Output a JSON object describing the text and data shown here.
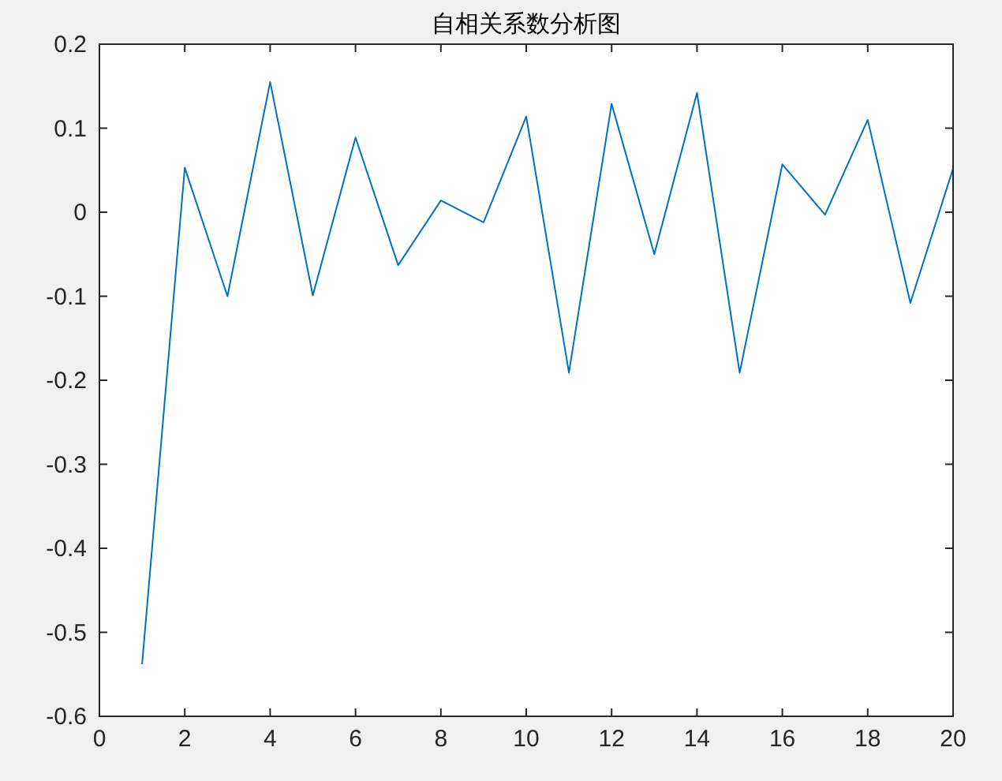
{
  "chart_data": {
    "type": "line",
    "title": "自相关系数分析图",
    "x": [
      1,
      2,
      3,
      4,
      5,
      6,
      7,
      8,
      9,
      10,
      11,
      12,
      13,
      14,
      15,
      16,
      17,
      18,
      19,
      20
    ],
    "series": [
      {
        "color": "#0072bd",
        "values": [
          -0.538,
          0.053,
          -0.1,
          0.155,
          -0.099,
          0.089,
          -0.063,
          0.014,
          -0.012,
          0.114,
          -0.191,
          0.129,
          -0.05,
          0.142,
          -0.191,
          0.057,
          -0.003,
          0.11,
          -0.108,
          0.052
        ]
      }
    ],
    "xlim": [
      0,
      20
    ],
    "ylim": [
      -0.6,
      0.2
    ],
    "xticks": [
      0,
      2,
      4,
      6,
      8,
      10,
      12,
      14,
      16,
      18,
      20
    ],
    "yticks": [
      -0.6,
      -0.5,
      -0.4,
      -0.3,
      -0.2,
      -0.1,
      0,
      0.1,
      0.2
    ]
  }
}
